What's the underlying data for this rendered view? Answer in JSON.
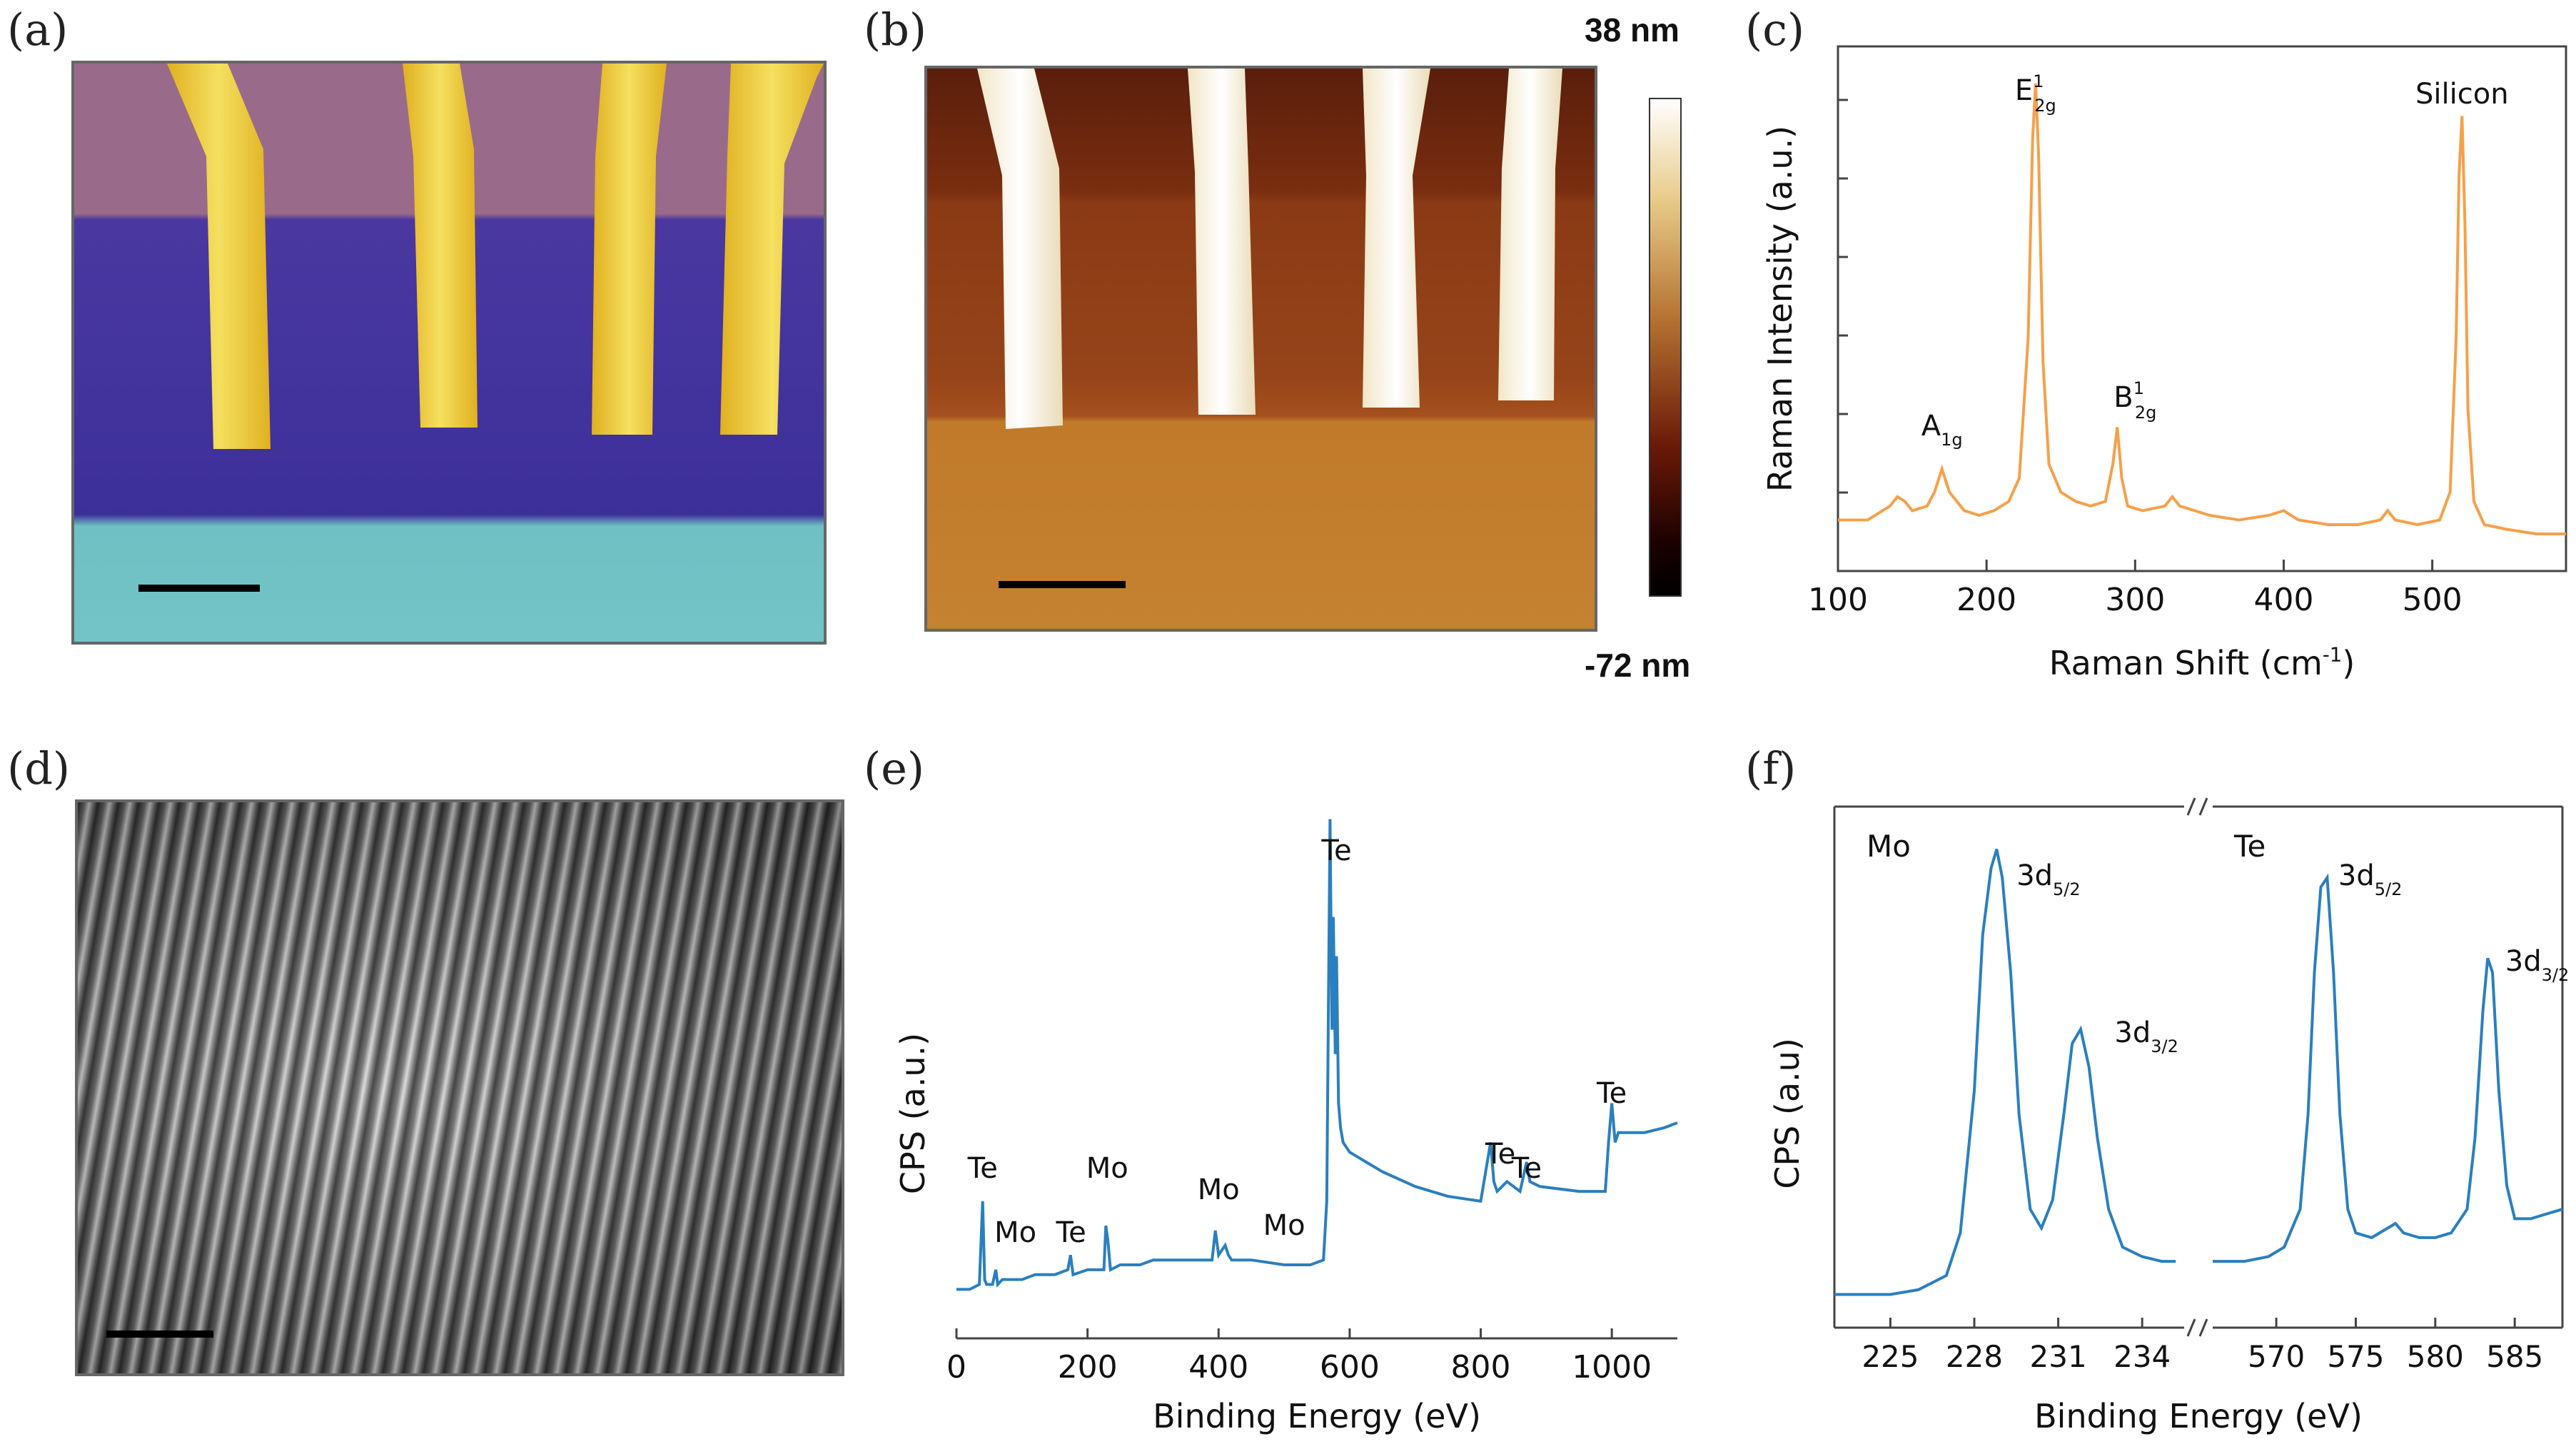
{
  "panels": {
    "a": {
      "label": "(a)"
    },
    "b": {
      "label": "(b)",
      "colorbar_max": "38 nm",
      "colorbar_min": "-72 nm"
    },
    "c": {
      "label": "(c)"
    },
    "d": {
      "label": "(d)"
    },
    "e": {
      "label": "(e)"
    },
    "f": {
      "label": "(f)"
    }
  },
  "chart_data": [
    {
      "panel": "c",
      "type": "line",
      "xlabel": "Raman Shift (cm-1)",
      "ylabel": "Raman Intensity (a.u.)",
      "xlim": [
        100,
        590
      ],
      "xticks": [
        100,
        200,
        300,
        400,
        500
      ],
      "color": "#f5a04a",
      "annotations": [
        {
          "text": "A1g",
          "x": 170
        },
        {
          "text": "E12g",
          "x": 233
        },
        {
          "text": "B12g",
          "x": 300
        },
        {
          "text": "Silicon",
          "x": 520
        }
      ],
      "x": [
        100,
        120,
        135,
        140,
        145,
        150,
        160,
        165,
        170,
        175,
        180,
        185,
        195,
        205,
        215,
        222,
        228,
        231,
        233,
        235,
        238,
        242,
        250,
        260,
        270,
        280,
        285,
        288,
        291,
        295,
        305,
        320,
        325,
        330,
        340,
        350,
        370,
        390,
        400,
        410,
        430,
        450,
        465,
        470,
        475,
        490,
        505,
        512,
        516,
        518,
        520,
        522,
        524,
        528,
        535,
        550,
        570,
        590
      ],
      "y": [
        0.06,
        0.06,
        0.09,
        0.11,
        0.1,
        0.08,
        0.09,
        0.12,
        0.17,
        0.12,
        0.1,
        0.08,
        0.07,
        0.08,
        0.1,
        0.15,
        0.45,
        0.88,
        1.0,
        0.85,
        0.4,
        0.18,
        0.12,
        0.1,
        0.09,
        0.1,
        0.18,
        0.26,
        0.15,
        0.09,
        0.08,
        0.09,
        0.11,
        0.09,
        0.08,
        0.07,
        0.06,
        0.07,
        0.08,
        0.06,
        0.05,
        0.05,
        0.06,
        0.08,
        0.06,
        0.05,
        0.06,
        0.12,
        0.45,
        0.8,
        0.93,
        0.7,
        0.3,
        0.1,
        0.05,
        0.04,
        0.03,
        0.03
      ]
    },
    {
      "panel": "e",
      "type": "line",
      "xlabel": "Binding Energy (eV)",
      "ylabel": "CPS (a.u.)",
      "xlim": [
        0,
        1100
      ],
      "xticks": [
        0,
        200,
        400,
        600,
        800,
        1000
      ],
      "color": "#2a7fbf",
      "annotations": [
        {
          "text": "Te",
          "x": 40
        },
        {
          "text": "Mo",
          "x": 90
        },
        {
          "text": "Te",
          "x": 175
        },
        {
          "text": "Mo",
          "x": 230
        },
        {
          "text": "Mo",
          "x": 400
        },
        {
          "text": "Mo",
          "x": 500
        },
        {
          "text": "Te",
          "x": 580
        },
        {
          "text": "Te",
          "x": 830
        },
        {
          "text": "Te",
          "x": 870
        },
        {
          "text": "Te",
          "x": 1000
        }
      ],
      "x": [
        0,
        20,
        35,
        40,
        43,
        46,
        55,
        60,
        63,
        70,
        100,
        120,
        150,
        170,
        174,
        178,
        200,
        225,
        228,
        231,
        235,
        250,
        280,
        300,
        350,
        390,
        395,
        400,
        410,
        415,
        420,
        450,
        500,
        530,
        540,
        560,
        565,
        570,
        573,
        575,
        578,
        580,
        583,
        586,
        590,
        600,
        650,
        700,
        750,
        800,
        815,
        820,
        825,
        840,
        860,
        870,
        875,
        890,
        950,
        990,
        995,
        1000,
        1005,
        1010,
        1050,
        1080,
        1100
      ],
      "y": [
        0.02,
        0.02,
        0.03,
        0.2,
        0.04,
        0.03,
        0.03,
        0.06,
        0.03,
        0.04,
        0.04,
        0.05,
        0.05,
        0.06,
        0.09,
        0.05,
        0.06,
        0.06,
        0.15,
        0.12,
        0.06,
        0.07,
        0.07,
        0.08,
        0.08,
        0.08,
        0.14,
        0.09,
        0.11,
        0.09,
        0.08,
        0.08,
        0.07,
        0.07,
        0.07,
        0.08,
        0.2,
        0.98,
        0.55,
        0.78,
        0.5,
        0.7,
        0.4,
        0.35,
        0.32,
        0.3,
        0.26,
        0.23,
        0.21,
        0.2,
        0.32,
        0.24,
        0.22,
        0.24,
        0.22,
        0.28,
        0.24,
        0.23,
        0.22,
        0.22,
        0.32,
        0.4,
        0.32,
        0.34,
        0.34,
        0.35,
        0.36
      ]
    },
    {
      "panel": "f",
      "type": "line",
      "xlabel": "Binding Energy (eV)",
      "ylabel": "CPS (a.u)",
      "color": "#2a7fbf",
      "segments": [
        {
          "name": "Mo",
          "xlim": [
            223,
            235.5
          ],
          "xticks": [
            225,
            228,
            231,
            234
          ],
          "annotations": [
            {
              "text": "3d5/2",
              "x": 229
            },
            {
              "text": "3d3/2",
              "x": 232.5
            }
          ],
          "x": [
            223,
            224,
            225,
            226,
            227,
            227.5,
            228,
            228.3,
            228.6,
            228.8,
            229,
            229.3,
            229.6,
            230,
            230.4,
            230.8,
            231.2,
            231.5,
            231.8,
            232.1,
            232.4,
            232.8,
            233.3,
            234,
            234.7,
            235.2
          ],
          "y": [
            0.02,
            0.02,
            0.02,
            0.03,
            0.06,
            0.15,
            0.45,
            0.78,
            0.92,
            0.96,
            0.9,
            0.7,
            0.4,
            0.2,
            0.16,
            0.22,
            0.4,
            0.55,
            0.58,
            0.5,
            0.35,
            0.2,
            0.12,
            0.1,
            0.09,
            0.09
          ]
        },
        {
          "name": "Te",
          "xlim": [
            566,
            588
          ],
          "xticks": [
            570,
            575,
            580,
            585
          ],
          "annotations": [
            {
              "text": "3d5/2",
              "x": 573
            },
            {
              "text": "3d3/2",
              "x": 583.5
            }
          ],
          "x": [
            566,
            568,
            569.5,
            570.5,
            571.5,
            572,
            572.4,
            572.8,
            573.2,
            573.6,
            574,
            574.5,
            575,
            576,
            577,
            577.5,
            578,
            579,
            580,
            581,
            582,
            582.5,
            583,
            583.3,
            583.6,
            584,
            584.5,
            585,
            586,
            587,
            588
          ],
          "y": [
            0.09,
            0.09,
            0.1,
            0.12,
            0.2,
            0.4,
            0.7,
            0.88,
            0.9,
            0.7,
            0.4,
            0.2,
            0.15,
            0.14,
            0.16,
            0.17,
            0.15,
            0.14,
            0.14,
            0.15,
            0.2,
            0.35,
            0.62,
            0.73,
            0.7,
            0.45,
            0.25,
            0.18,
            0.18,
            0.19,
            0.2
          ]
        }
      ]
    }
  ]
}
